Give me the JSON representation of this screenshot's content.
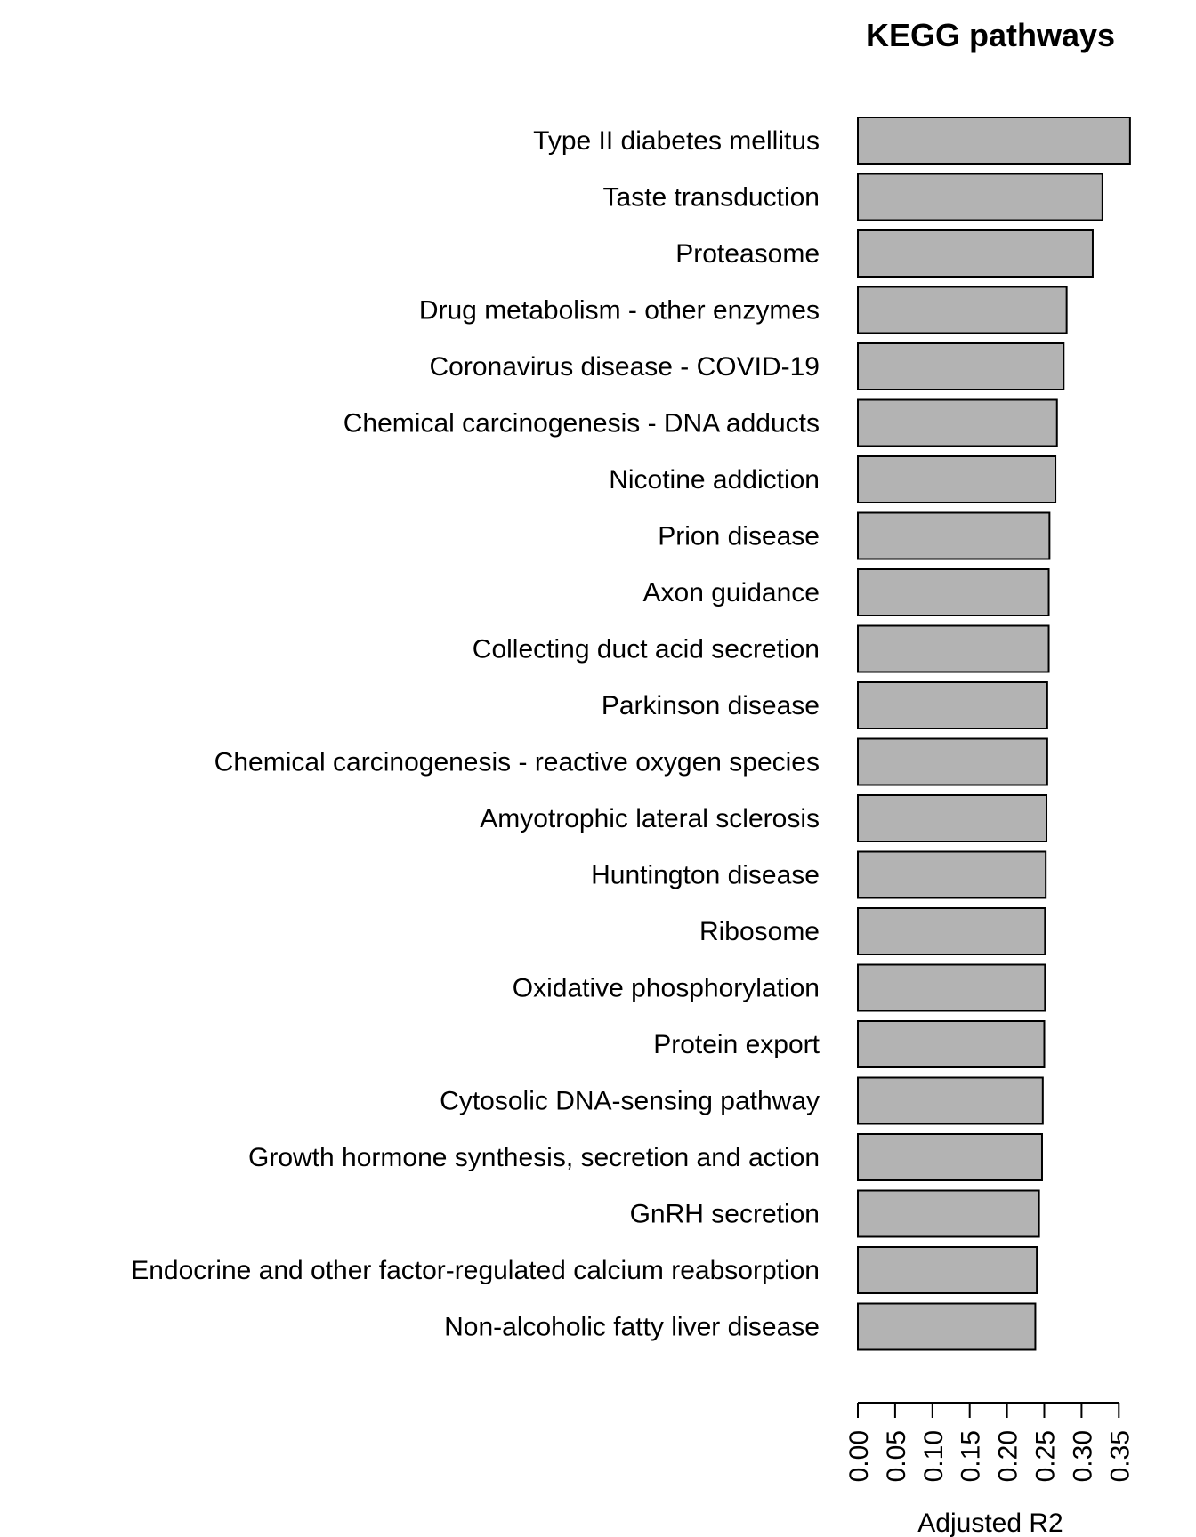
{
  "chart_data": {
    "type": "bar",
    "orientation": "horizontal",
    "title": "KEGG pathways",
    "xlabel": "Adjusted R2",
    "ylabel": "",
    "xlim": [
      0,
      0.36
    ],
    "ticks": [
      "0.00",
      "0.05",
      "0.10",
      "0.15",
      "0.20",
      "0.25",
      "0.30",
      "0.35"
    ],
    "tick_values": [
      0,
      0.05,
      0.1,
      0.15,
      0.2,
      0.25,
      0.3,
      0.35
    ],
    "grid": false,
    "legend": "none",
    "bar_color": "#b3b3b3",
    "bar_edge_color": "#000000",
    "categories": [
      "Type II diabetes mellitus",
      "Taste transduction",
      "Proteasome",
      "Drug metabolism - other enzymes",
      "Coronavirus disease - COVID-19",
      "Chemical carcinogenesis - DNA adducts",
      "Nicotine addiction",
      "Prion disease",
      "Axon guidance",
      "Collecting duct acid secretion",
      "Parkinson disease",
      "Chemical carcinogenesis - reactive oxygen species",
      "Amyotrophic lateral sclerosis",
      "Huntington disease",
      "Ribosome",
      "Oxidative phosphorylation",
      "Protein export",
      "Cytosolic DNA-sensing pathway",
      "Growth hormone synthesis, secretion and action",
      "GnRH secretion",
      "Endocrine and other factor-regulated calcium reabsorption",
      "Non-alcoholic fatty liver disease"
    ],
    "values": [
      0.365,
      0.328,
      0.315,
      0.28,
      0.276,
      0.267,
      0.265,
      0.257,
      0.256,
      0.256,
      0.254,
      0.254,
      0.253,
      0.252,
      0.251,
      0.251,
      0.25,
      0.248,
      0.247,
      0.243,
      0.24,
      0.238
    ]
  }
}
